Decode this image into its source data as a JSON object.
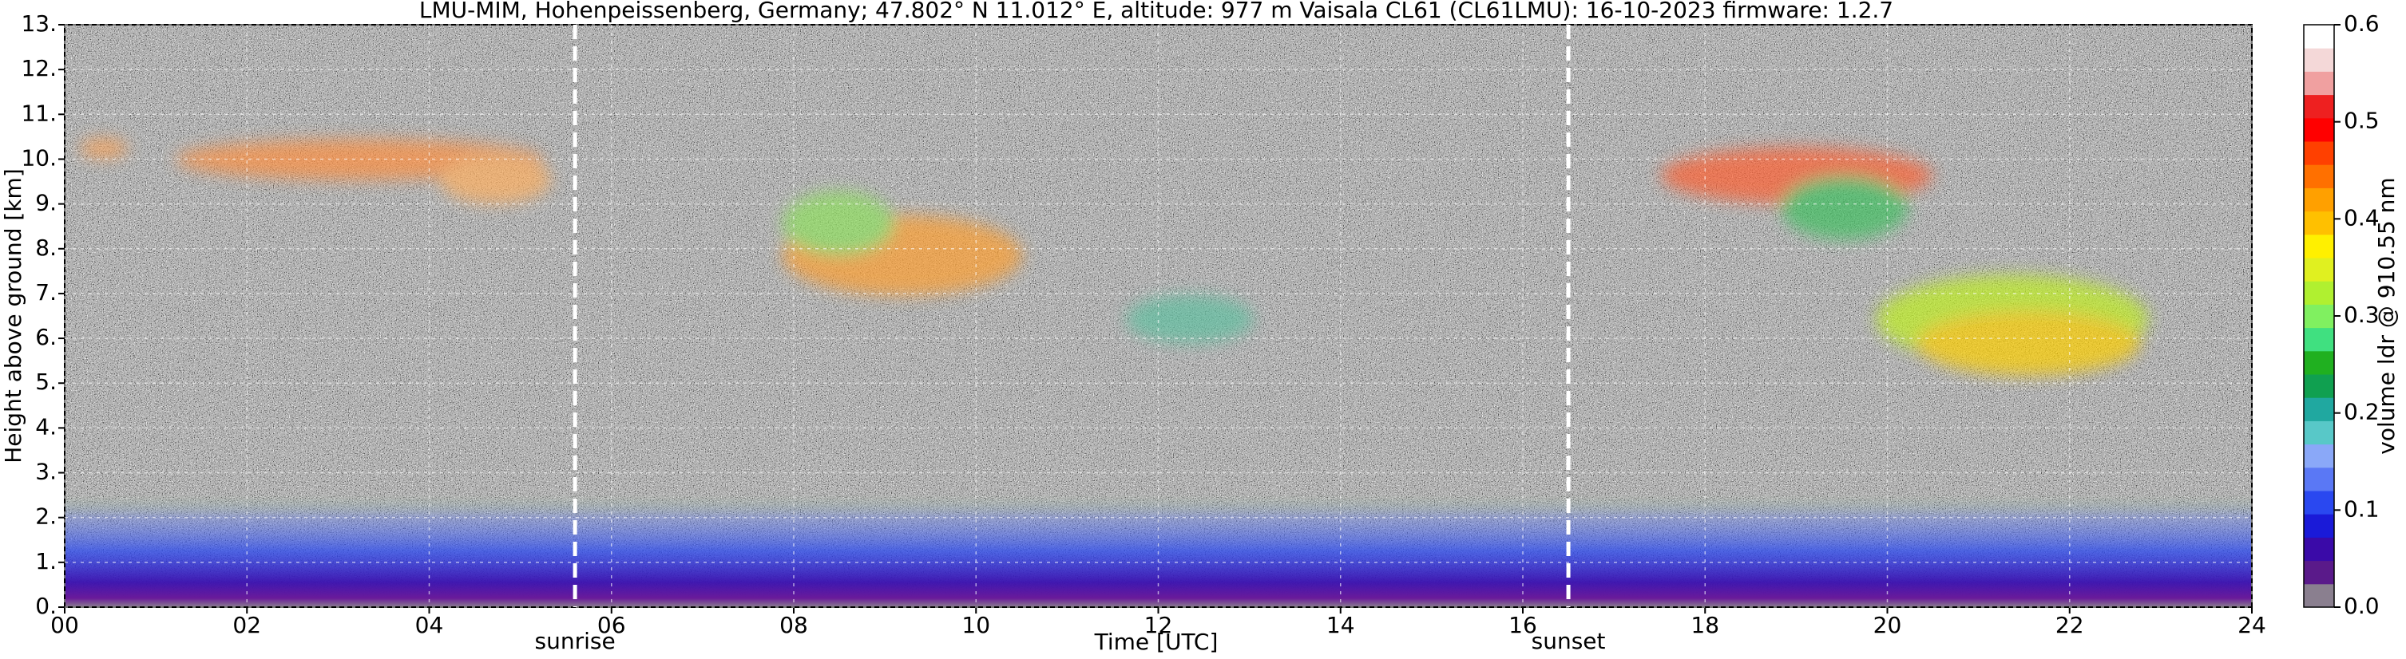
{
  "chart_data": {
    "type": "heatmap",
    "title": "LMU-MIM, Hohenpeissenberg, Germany; 47.802° N 11.012° E, altitude: 977 m    Vaisala CL61 (CL61LMU): 16-10-2023    firmware: 1.2.7",
    "xlabel": "Time [UTC]",
    "ylabel": "Height above ground [km]",
    "xlim": [
      0,
      24
    ],
    "xticks": [
      {
        "value": 0,
        "label": "00"
      },
      {
        "value": 2,
        "label": "02"
      },
      {
        "value": 4,
        "label": "04"
      },
      {
        "value": 6,
        "label": "06"
      },
      {
        "value": 8,
        "label": "08"
      },
      10,
      12,
      14,
      16,
      18,
      20,
      22,
      24
    ],
    "ylim": [
      0,
      13
    ],
    "yticks": [
      {
        "value": 0,
        "label": "0."
      },
      {
        "value": 1,
        "label": "1."
      },
      {
        "value": 2,
        "label": "2."
      },
      {
        "value": 3,
        "label": "3."
      },
      {
        "value": 4,
        "label": "4."
      },
      {
        "value": 5,
        "label": "5."
      },
      {
        "value": 6,
        "label": "6."
      },
      {
        "value": 7,
        "label": "7."
      },
      {
        "value": 8,
        "label": "8."
      },
      {
        "value": 9,
        "label": "9."
      },
      {
        "value": 10,
        "label": "10."
      },
      {
        "value": 11,
        "label": "11."
      },
      {
        "value": 12,
        "label": "12."
      },
      {
        "value": 13,
        "label": "13."
      }
    ],
    "grid": true,
    "annotations": [
      {
        "x": 5.6,
        "label": "sunrise"
      },
      {
        "x": 16.5,
        "label": "sunset"
      }
    ],
    "colorbar": {
      "label": "volume ldr @ 910.55 nm",
      "lim": [
        0,
        0.6
      ],
      "ticks": [
        {
          "value": 0,
          "label": "0.0"
        },
        0.1,
        0.2,
        0.3,
        0.4,
        0.5,
        0.6
      ],
      "colors": [
        "#8a7f8f",
        "#5a1a8a",
        "#3a0aa8",
        "#1a1ad8",
        "#2a48f0",
        "#5a78f5",
        "#8aa8f8",
        "#58c8c8",
        "#20a8a0",
        "#10a050",
        "#20b020",
        "#40e080",
        "#80f060",
        "#b0f030",
        "#e0f020",
        "#fff000",
        "#ffc000",
        "#ffa000",
        "#ff7000",
        "#ff4000",
        "#ff0000",
        "#ee2020",
        "#f0a0a0",
        "#f4d8d8",
        "#ffffff"
      ]
    }
  }
}
